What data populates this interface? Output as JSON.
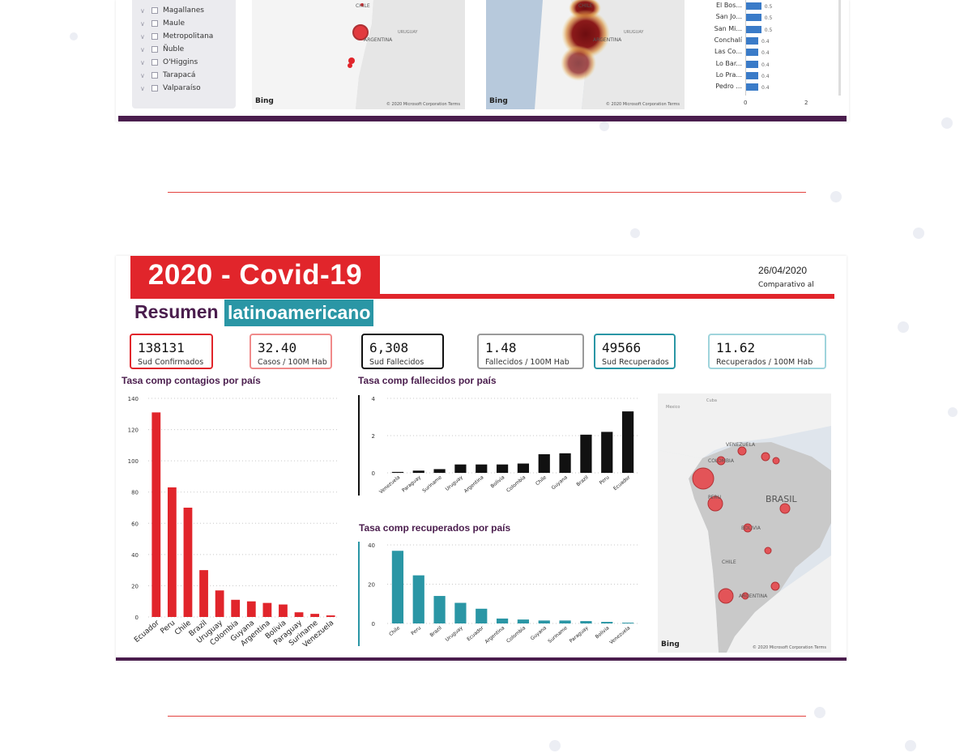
{
  "top_panel": {
    "regions": [
      "Magallanes",
      "Maule",
      "Metropolitana",
      "Ñuble",
      "O'Higgins",
      "Tarapacá",
      "Valparaíso"
    ],
    "map1": {
      "labels": [
        "CHILE",
        "ARGENTINA",
        "URUGUAY"
      ],
      "bing": "Bing",
      "copyright": "© 2020 Microsoft Corporation  Terms"
    },
    "map2": {
      "labels": [
        "CHILE",
        "ARGENTINA",
        "URUGUAY"
      ],
      "bing": "Bing",
      "copyright": "© 2020 Microsoft Corporation  Terms"
    },
    "comunas": {
      "labels": [
        "El Bos...",
        "San Jo...",
        "San Mi...",
        "Conchalí",
        "Las Co...",
        "Lo Bar...",
        "Lo Pra...",
        "Pedro ..."
      ],
      "values": [
        0.5,
        0.5,
        0.5,
        0.4,
        0.4,
        0.4,
        0.4,
        0.4
      ],
      "value_labels": [
        "0.5",
        "0.5",
        "0.5",
        "0.4",
        "0.4",
        "0.4",
        "0.4",
        "0.4"
      ],
      "axis_ticks": [
        "0",
        "2"
      ]
    }
  },
  "dashboard": {
    "title": "2020 - Covid-19",
    "subtitle_1": "Resumen",
    "subtitle_2": "latinoamericano",
    "date": "26/04/2020",
    "date_label": "Comparativo al",
    "colors": {
      "red": "#e1252b",
      "purple": "#4a1d4d",
      "teal": "#2a96a5"
    },
    "kpis": [
      {
        "value": "138131",
        "label": "Sud Confirmados",
        "color": "#e1252b"
      },
      {
        "value": "32.40",
        "label": "Casos / 100M Hab",
        "color": "#f08a8a"
      },
      {
        "value": "6,308",
        "label": "Sud Fallecidos",
        "color": "#111111"
      },
      {
        "value": "1.48",
        "label": "Fallecidos / 100M Hab",
        "color": "#9a9a9a"
      },
      {
        "value": "49566",
        "label": "Sud Recuperados",
        "color": "#2a96a5"
      },
      {
        "value": "11.62",
        "label": "Recuperados / 100M Hab",
        "color": "#9fd4dc"
      }
    ],
    "map": {
      "labels": [
        "VENEZUELA",
        "COLOMBIA",
        "BRASIL",
        "PERU",
        "BOLIVIA",
        "CHILE",
        "ARGENTINA",
        "Cuba",
        "Mexico"
      ],
      "bing": "Bing",
      "copyright": "© 2020 Microsoft Corporation  Terms"
    }
  },
  "chart_data": [
    {
      "type": "bar",
      "title": "Tasa comp contagios por país",
      "categories": [
        "Ecuador",
        "Peru",
        "Chile",
        "Brazil",
        "Uruguay",
        "Colombia",
        "Guyana",
        "Argentina",
        "Bolivia",
        "Paraguay",
        "Suriname",
        "Venezuela"
      ],
      "values": [
        131,
        83,
        70,
        30,
        17,
        11,
        10,
        9,
        8,
        3,
        2,
        1
      ],
      "ylim": [
        0,
        140
      ],
      "yticks": [
        0,
        20,
        40,
        60,
        80,
        100,
        120,
        140
      ],
      "color": "#e1252b",
      "grid": true
    },
    {
      "type": "bar",
      "title": "Tasa comp fallecidos por país",
      "categories": [
        "Venezuela",
        "Paraguay",
        "Suriname",
        "Uruguay",
        "Argentina",
        "Bolivia",
        "Colombia",
        "Chile",
        "Guyana",
        "Brazil",
        "Peru",
        "Ecuador"
      ],
      "values": [
        0.05,
        0.12,
        0.2,
        0.45,
        0.45,
        0.45,
        0.5,
        1.0,
        1.05,
        2.05,
        2.2,
        3.3
      ],
      "ylim": [
        0,
        4
      ],
      "yticks": [
        0,
        2,
        4
      ],
      "color": "#111111",
      "grid": true
    },
    {
      "type": "bar",
      "title": "Tasa comp recuperados por país",
      "categories": [
        "Chile",
        "Peru",
        "Brazil",
        "Uruguay",
        "Ecuador",
        "Argentina",
        "Colombia",
        "Guyana",
        "Suriname",
        "Paraguay",
        "Bolivia",
        "Venezuela"
      ],
      "values": [
        37,
        24.5,
        14,
        10.5,
        7.5,
        2.5,
        2,
        1.5,
        1.5,
        1.2,
        0.8,
        0.4
      ],
      "ylim": [
        0,
        40
      ],
      "yticks": [
        0,
        20,
        40
      ],
      "color": "#2a96a5",
      "grid": true
    }
  ]
}
